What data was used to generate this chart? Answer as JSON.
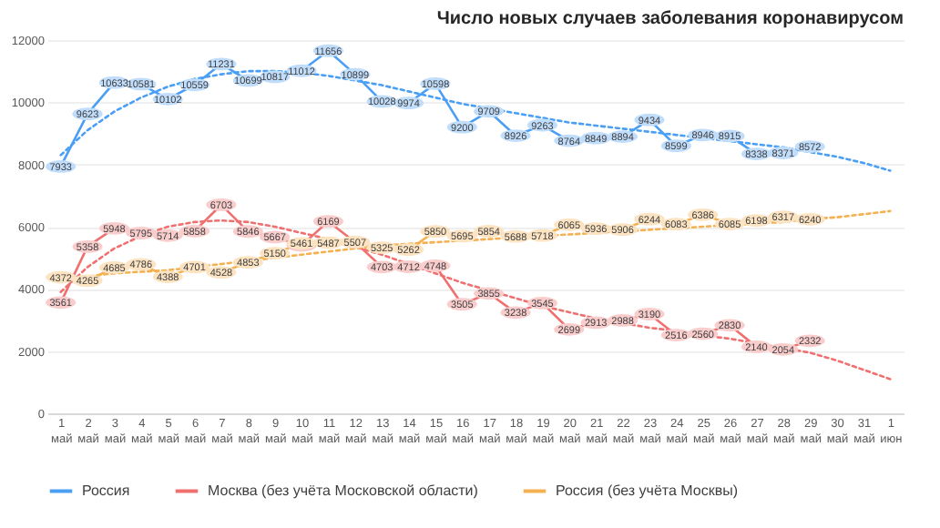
{
  "chart_data": {
    "type": "line",
    "title": "Число новых случаев заболевания коронавирусом",
    "categories": [
      "1 май",
      "2 май",
      "3 май",
      "4 май",
      "5 май",
      "6 май",
      "7 май",
      "8 май",
      "9 май",
      "10 май",
      "11 май",
      "12 май",
      "13 май",
      "14 май",
      "15 май",
      "16 май",
      "17 май",
      "18 май",
      "19 май",
      "20 май",
      "21 май",
      "22 май",
      "23 май",
      "24 май",
      "25 май",
      "26 май",
      "27 май",
      "28 май",
      "29 май",
      "30 май",
      "31 май",
      "1 июн"
    ],
    "series": [
      {
        "name": "Россия",
        "color": "#4a9ff5",
        "values": [
          7933,
          9623,
          10633,
          10581,
          10102,
          10559,
          11231,
          10699,
          10817,
          11012,
          11656,
          10899,
          10028,
          9974,
          10598,
          9200,
          9709,
          8926,
          9263,
          8764,
          8849,
          8894,
          9434,
          8599,
          8946,
          8915,
          8338,
          8371,
          8572,
          null,
          null,
          null
        ],
        "value_labels": [
          "7933",
          "9623",
          "10633",
          "10581",
          "10102",
          "10559",
          "11231",
          "10699",
          "10817",
          "11012",
          "11656",
          "10899",
          "10028",
          "9974",
          "10598",
          "9200",
          "9709",
          "8926",
          "9263",
          "8764",
          "8849",
          "8894",
          "9434",
          "8599",
          "8946",
          "8915",
          "8338",
          "8371",
          "8572",
          null,
          null,
          null
        ]
      },
      {
        "name": "Москва (без учёта Московской области)",
        "color": "#f07070",
        "values": [
          3561,
          5358,
          5948,
          5795,
          5714,
          5858,
          6703,
          5846,
          5667,
          5400,
          6169,
          5500,
          4703,
          4712,
          4748,
          3505,
          3855,
          3238,
          3545,
          2699,
          2913,
          2988,
          3190,
          2516,
          2560,
          2830,
          2140,
          2054,
          2332,
          null,
          null,
          null
        ],
        "value_labels": [
          "3561",
          "5358",
          "5948",
          "5795",
          "5714",
          "5858",
          "6703",
          "5846",
          "5667",
          null,
          "6169",
          null,
          "4703",
          "4712",
          "4748",
          "3505",
          "3855",
          "3238",
          "3545",
          "2699",
          "2913",
          "2988",
          "3190",
          "2516",
          "2560",
          "2830",
          "2140",
          "2054",
          "2332",
          null,
          null,
          null
        ]
      },
      {
        "name": "Россия (без учёта Москвы)",
        "color": "#f5b050",
        "values": [
          4372,
          4265,
          4685,
          4786,
          4388,
          4701,
          4528,
          4853,
          5150,
          5461,
          5487,
          5507,
          5325,
          5262,
          5850,
          5695,
          5854,
          5688,
          5718,
          6065,
          5936,
          5906,
          6244,
          6083,
          6386,
          6085,
          6198,
          6317,
          6240,
          null,
          null,
          null
        ],
        "value_labels": [
          "4372",
          "4265",
          "4685",
          "4786",
          "4388",
          "4701",
          "4528",
          "4853",
          "5150",
          "5461",
          "5487",
          "5507",
          "5325",
          "5262",
          "5850",
          "5695",
          "5854",
          "5688",
          "5718",
          "6065",
          "5936",
          "5906",
          "6244",
          "6083",
          "6386",
          "6085",
          "6198",
          "6317",
          "6240",
          null,
          null,
          null
        ]
      },
      {
        "type": "line",
        "line_style": "dotted",
        "marker": "none",
        "color": "#4a9ff5",
        "values": [
          8300,
          9100,
          9700,
          10150,
          10500,
          10750,
          10900,
          11000,
          11000,
          10950,
          10850,
          10700,
          10550,
          10350,
          10150,
          9950,
          9800,
          9650,
          9500,
          9350,
          9250,
          9150,
          9050,
          8950,
          8850,
          8750,
          8650,
          8550,
          8400,
          8250,
          8050,
          7800
        ]
      },
      {
        "type": "line",
        "line_style": "dotted",
        "marker": "none",
        "color": "#f07070",
        "values": [
          3900,
          4700,
          5300,
          5700,
          6000,
          6150,
          6200,
          6150,
          6000,
          5800,
          5600,
          5350,
          5100,
          4800,
          4500,
          4200,
          3950,
          3700,
          3450,
          3250,
          3050,
          2900,
          2750,
          2650,
          2500,
          2400,
          2250,
          2100,
          1950,
          1700,
          1400,
          1100
        ]
      },
      {
        "type": "line",
        "line_style": "dotted",
        "marker": "none",
        "color": "#f5b050",
        "values": [
          4300,
          4400,
          4500,
          4550,
          4600,
          4700,
          4800,
          4900,
          5000,
          5100,
          5200,
          5300,
          5400,
          5450,
          5500,
          5550,
          5600,
          5650,
          5700,
          5750,
          5800,
          5850,
          5900,
          5950,
          6000,
          6050,
          6100,
          6150,
          6250,
          6300,
          6400,
          6500
        ]
      }
    ],
    "ylim": [
      0,
      12000
    ],
    "yticks": [
      0,
      2000,
      4000,
      6000,
      8000,
      10000,
      12000
    ],
    "grid": "y",
    "legend": "bottom",
    "marker": "circle",
    "line_style": "solid"
  }
}
